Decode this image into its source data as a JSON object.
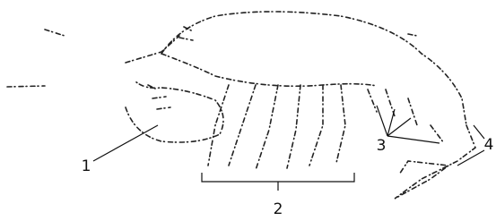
{
  "labels": [
    {
      "text": "1"
    },
    {
      "text": "2"
    },
    {
      "text": "3"
    },
    {
      "text": "4"
    }
  ]
}
